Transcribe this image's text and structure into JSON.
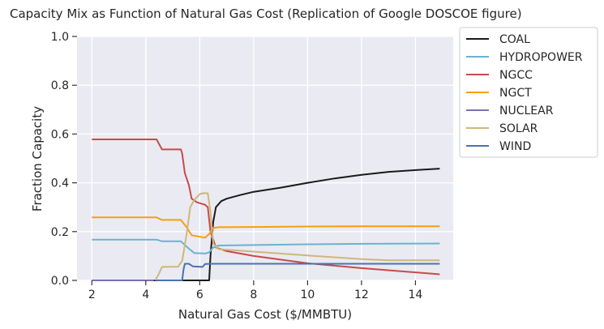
{
  "chart_data": {
    "type": "line",
    "title": "Capacity Mix as Function of Natural Gas Cost (Replication of Google DOSCOE figure)",
    "xlabel": "Natural Gas Cost ($/MMBTU)",
    "ylabel": "Fraction Capacity",
    "xlim": [
      1.45,
      15.4
    ],
    "ylim": [
      0.0,
      1.0
    ],
    "xticks": [
      2,
      4,
      6,
      8,
      10,
      12,
      14
    ],
    "yticks": [
      0.0,
      0.2,
      0.4,
      0.6,
      0.8,
      1.0
    ],
    "ytick_labels": [
      "0.0",
      "0.2",
      "0.4",
      "0.6",
      "0.8",
      "1.0"
    ],
    "grid": true,
    "legend_position": "outside-right-top",
    "series": [
      {
        "name": "COAL",
        "color": "#1a1a1a",
        "points": [
          [
            2,
            0
          ],
          [
            6.35,
            0
          ],
          [
            6.4,
            0.1
          ],
          [
            6.5,
            0.24
          ],
          [
            6.6,
            0.3
          ],
          [
            6.8,
            0.325
          ],
          [
            7,
            0.335
          ],
          [
            7.5,
            0.35
          ],
          [
            8,
            0.363
          ],
          [
            9,
            0.38
          ],
          [
            10,
            0.4
          ],
          [
            11,
            0.418
          ],
          [
            12,
            0.433
          ],
          [
            13,
            0.445
          ],
          [
            14,
            0.452
          ],
          [
            14.9,
            0.458
          ]
        ]
      },
      {
        "name": "HYDROPOWER",
        "color": "#6ab3d0",
        "points": [
          [
            2,
            0.167
          ],
          [
            4.4,
            0.167
          ],
          [
            4.6,
            0.16
          ],
          [
            5.3,
            0.16
          ],
          [
            5.6,
            0.13
          ],
          [
            5.8,
            0.112
          ],
          [
            6.2,
            0.11
          ],
          [
            6.35,
            0.115
          ],
          [
            6.5,
            0.135
          ],
          [
            6.7,
            0.143
          ],
          [
            8,
            0.145
          ],
          [
            10,
            0.148
          ],
          [
            12,
            0.15
          ],
          [
            14.9,
            0.151
          ]
        ]
      },
      {
        "name": "NGCC",
        "color": "#c84a4a",
        "points": [
          [
            2,
            0.578
          ],
          [
            4.4,
            0.578
          ],
          [
            4.6,
            0.537
          ],
          [
            5.3,
            0.537
          ],
          [
            5.35,
            0.52
          ],
          [
            5.45,
            0.44
          ],
          [
            5.6,
            0.39
          ],
          [
            5.7,
            0.335
          ],
          [
            5.9,
            0.32
          ],
          [
            6.2,
            0.31
          ],
          [
            6.3,
            0.3
          ],
          [
            6.4,
            0.2
          ],
          [
            6.6,
            0.135
          ],
          [
            7,
            0.12
          ],
          [
            8,
            0.1
          ],
          [
            10,
            0.07
          ],
          [
            12,
            0.05
          ],
          [
            14.9,
            0.025
          ]
        ]
      },
      {
        "name": "NGCT",
        "color": "#f5a00e",
        "points": [
          [
            2,
            0.258
          ],
          [
            4.4,
            0.258
          ],
          [
            4.6,
            0.248
          ],
          [
            5.3,
            0.248
          ],
          [
            5.5,
            0.22
          ],
          [
            5.7,
            0.185
          ],
          [
            6.2,
            0.175
          ],
          [
            6.35,
            0.19
          ],
          [
            6.5,
            0.215
          ],
          [
            6.7,
            0.218
          ],
          [
            8,
            0.219
          ],
          [
            10,
            0.221
          ],
          [
            12,
            0.222
          ],
          [
            14.9,
            0.222
          ]
        ]
      },
      {
        "name": "NUCLEAR",
        "color": "#7b6fb4",
        "points": [
          [
            2,
            0
          ],
          [
            4.3,
            0
          ]
        ]
      },
      {
        "name": "SOLAR",
        "color": "#cdb77c",
        "points": [
          [
            4.35,
            0
          ],
          [
            4.5,
            0.03
          ],
          [
            4.6,
            0.055
          ],
          [
            5.2,
            0.056
          ],
          [
            5.35,
            0.08
          ],
          [
            5.5,
            0.18
          ],
          [
            5.65,
            0.3
          ],
          [
            5.8,
            0.33
          ],
          [
            6,
            0.353
          ],
          [
            6.1,
            0.357
          ],
          [
            6.3,
            0.357
          ],
          [
            6.4,
            0.28
          ],
          [
            6.5,
            0.15
          ],
          [
            6.7,
            0.128
          ],
          [
            8,
            0.118
          ],
          [
            10,
            0.102
          ],
          [
            12,
            0.087
          ],
          [
            13,
            0.082
          ],
          [
            14.9,
            0.082
          ]
        ]
      },
      {
        "name": "WIND",
        "color": "#4a72b0",
        "points": [
          [
            4.4,
            0
          ],
          [
            5.35,
            0
          ],
          [
            5.4,
            0.045
          ],
          [
            5.45,
            0.068
          ],
          [
            5.6,
            0.068
          ],
          [
            5.75,
            0.057
          ],
          [
            6.1,
            0.055
          ],
          [
            6.2,
            0.067
          ],
          [
            6.5,
            0.068
          ],
          [
            8,
            0.068
          ],
          [
            10,
            0.068
          ],
          [
            12,
            0.068
          ],
          [
            14.9,
            0.068
          ]
        ]
      }
    ]
  }
}
